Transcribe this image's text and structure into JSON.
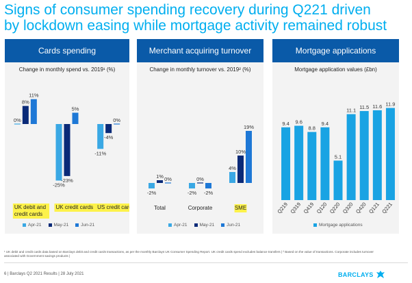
{
  "title": "Signs of consumer spending recovery during Q221 driven by lockdown easing while mortgage activity remained robust",
  "colors": {
    "title": "#00aeef",
    "header_bg": "#0a5aa8",
    "panel_bg": "#f3f3f3",
    "apr": "#3aa8e4",
    "may": "#0a2a78",
    "jun": "#1e78d6",
    "mortgage": "#19a3e3",
    "highlight": "#fdf24a"
  },
  "panels": {
    "cards": {
      "header": "Cards spending",
      "subtitle": "Change in monthly spend vs. 2019¹ (%)"
    },
    "merchant": {
      "header": "Merchant acquiring turnover",
      "subtitle": "Change in monthly turnover vs. 2019² (%)"
    },
    "mortgage": {
      "header": "Mortgage applications",
      "subtitle": "Mortgage application values (£bn)"
    }
  },
  "legend": {
    "apr": "Apr-21",
    "may": "May-21",
    "jun": "Jun-21",
    "mortgage": "Mortgage applications"
  },
  "chart_data": [
    {
      "type": "bar",
      "categories": [
        "UK debit and credit cards",
        "UK credit cards",
        "US credit cards"
      ],
      "series": [
        {
          "name": "Apr-21",
          "values": [
            0,
            -25,
            -11
          ]
        },
        {
          "name": "May-21",
          "values": [
            8,
            -23,
            -4
          ]
        },
        {
          "name": "Jun-21",
          "values": [
            11,
            5,
            0
          ]
        }
      ],
      "highlighted_categories": [
        "UK debit and credit cards",
        "UK credit cards",
        "US credit cards"
      ]
    },
    {
      "type": "bar",
      "categories": [
        "Total",
        "Corporate",
        "SME"
      ],
      "series": [
        {
          "name": "Apr-21",
          "values": [
            -2,
            -2,
            4
          ]
        },
        {
          "name": "May-21",
          "values": [
            1,
            0,
            10
          ]
        },
        {
          "name": "Jun-21",
          "values": [
            0,
            -2,
            19
          ]
        }
      ],
      "highlighted_categories": [
        "SME"
      ]
    },
    {
      "type": "bar",
      "categories": [
        "Q219",
        "Q319",
        "Q419",
        "Q120",
        "Q220",
        "Q320",
        "Q420",
        "Q121",
        "Q221"
      ],
      "series": [
        {
          "name": "Mortgage applications",
          "values": [
            9.4,
            9.6,
            8.8,
            9.4,
            5.1,
            11.1,
            11.5,
            11.6,
            11.9
          ]
        }
      ]
    }
  ],
  "footnote": "¹ UK debit and credit cards data based on Barclays debit and credit cards transactions, as per the monthly Barclays UK Consumer Spending Report. UK credit cards spend excludes balance transfers | ² Based on the value of transactions. Corporate includes turnover associated with Government savings products |",
  "footer": "6  |  Barclays Q2 2021 Results  |  28 July 2021",
  "brand": "BARCLAYS"
}
